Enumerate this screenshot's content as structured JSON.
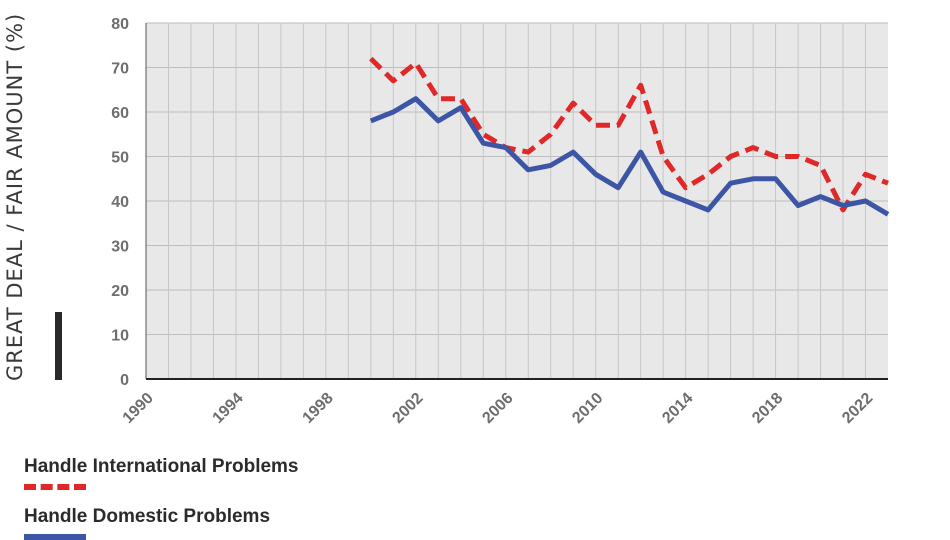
{
  "chart_data": {
    "type": "line",
    "title": "",
    "xlabel": "",
    "ylabel": "GREAT DEAL / FAIR AMOUNT (%)",
    "xlim": [
      1990,
      2023
    ],
    "ylim": [
      0,
      80
    ],
    "x_ticks": [
      "1990",
      "1994",
      "1998",
      "2002",
      "2006",
      "2010",
      "2014",
      "2018",
      "2022"
    ],
    "y_ticks": [
      "0",
      "10",
      "20",
      "30",
      "40",
      "50",
      "60",
      "70",
      "80"
    ],
    "grid": true,
    "legend_position": "bottom-left",
    "series": [
      {
        "name": "Handle International Problems",
        "color": "#e02828",
        "style": "dashed",
        "x": [
          2000,
          2001,
          2002,
          2003,
          2004,
          2005,
          2006,
          2007,
          2008,
          2009,
          2010,
          2011,
          2012,
          2013,
          2014,
          2015,
          2016,
          2017,
          2018,
          2019,
          2020,
          2021,
          2022,
          2023
        ],
        "values": [
          72,
          67,
          71,
          63,
          63,
          55,
          52,
          51,
          55,
          62,
          57,
          57,
          66,
          50,
          43,
          46,
          50,
          52,
          50,
          50,
          48,
          38,
          46,
          44
        ]
      },
      {
        "name": "Handle Domestic Problems",
        "color": "#3d55a5",
        "style": "solid",
        "x": [
          2000,
          2001,
          2002,
          2003,
          2004,
          2005,
          2006,
          2007,
          2008,
          2009,
          2010,
          2011,
          2012,
          2013,
          2014,
          2015,
          2016,
          2017,
          2018,
          2019,
          2020,
          2021,
          2022,
          2023
        ],
        "values": [
          58,
          60,
          63,
          58,
          61,
          53,
          52,
          47,
          48,
          51,
          46,
          43,
          51,
          42,
          40,
          38,
          44,
          45,
          45,
          39,
          41,
          39,
          40,
          37
        ]
      }
    ]
  }
}
